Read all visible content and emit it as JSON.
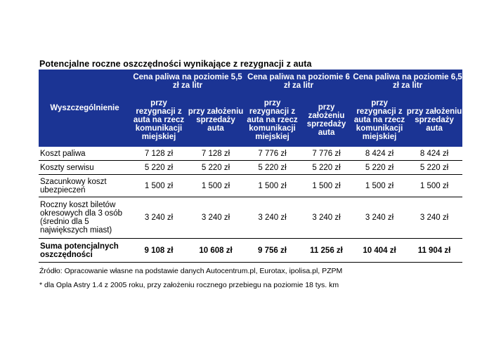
{
  "title": "Potencjalne  roczne  oszczędności  wynikające  z rezygnacji  z auta",
  "header": {
    "first_col": "Wyszczególnienie",
    "groups": [
      "Cena paliwa na poziomie 5,5 zł za litr",
      "Cena paliwa na poziomie 6 zł za litr",
      "Cena paliwa na poziomie 6,5 zł za litr"
    ],
    "sub_a": "przy rezygnacji z auta na rzecz komunikacji miejskiej",
    "sub_b": "przy założeniu sprzedaży auta"
  },
  "rows": [
    {
      "label": "Koszt paliwa",
      "values": [
        "7 128 zł",
        "7 128 zł",
        "7 776 zł",
        "7 776 zł",
        "8 424 zł",
        "8 424 zł"
      ]
    },
    {
      "label": "Koszty serwisu",
      "values": [
        "5 220 zł",
        "5 220 zł",
        "5 220 zł",
        "5 220 zł",
        "5 220 zł",
        "5 220 zł"
      ]
    },
    {
      "label": "Szacunkowy koszt ubezpieczeń",
      "values": [
        "1 500 zł",
        "1 500 zł",
        "1 500 zł",
        "1 500 zł",
        "1 500 zł",
        "1 500 zł"
      ]
    },
    {
      "label": "Roczny koszt biletów okresowych dla 3 osób (średnio dla 5 największych miast)",
      "values": [
        "3 240 zł",
        "3 240 zł",
        "3 240 zł",
        "3 240 zł",
        "3 240 zł",
        "3 240 zł"
      ]
    },
    {
      "label": "Suma potencjalnych oszczędności",
      "values": [
        "9 108 zł",
        "10 608 zł",
        "9 756 zł",
        "11 256 zł",
        "10 404 zł",
        "11 904 zł"
      ]
    }
  ],
  "source": "Źródło: Opracowanie własne na podstawie danych Autocentrum.pl, Eurotax, ipolisa.pl, PZPM",
  "footnote": "* dla Opla Astry 1.4 z 2005 roku, przy założeniu rocznego przebiegu na poziomie 18 tys. km",
  "colors": {
    "header_bg": "#1b3494",
    "header_text": "#ffffff"
  }
}
